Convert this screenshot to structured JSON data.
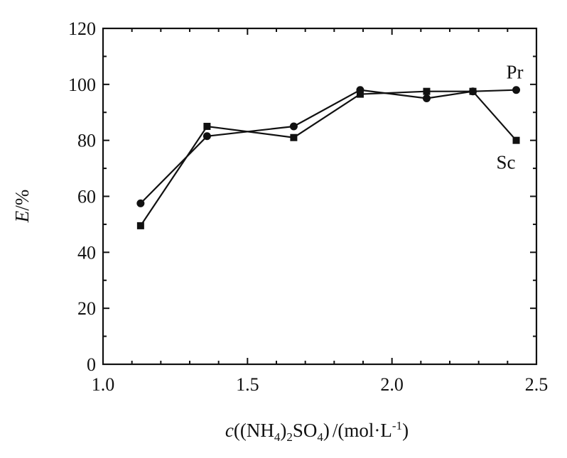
{
  "chart_data": {
    "type": "line",
    "xlabel": {
      "prefix": "c",
      "open": "((NH",
      "sub1": "4",
      "mid": ")",
      "sub2": "2",
      "so": "SO",
      "sub3": "4",
      "close": ")",
      "unit": "/(mol·L",
      "sup": "-1",
      "unit_close": ")"
    },
    "ylabel": {
      "var": "E",
      "unit": "/%"
    },
    "xlim": [
      1.0,
      2.5
    ],
    "ylim": [
      0,
      120
    ],
    "xticks": [
      "1.0",
      "1.5",
      "2.0",
      "2.5"
    ],
    "yticks": [
      "0",
      "20",
      "40",
      "60",
      "80",
      "100",
      "120"
    ],
    "grid": false,
    "series": [
      {
        "name": "Pr",
        "marker": "circle",
        "x": [
          1.13,
          1.36,
          1.66,
          1.89,
          2.12,
          2.28,
          2.43
        ],
        "y": [
          57.5,
          81.5,
          85.0,
          98.0,
          95.0,
          97.5,
          98.0
        ]
      },
      {
        "name": "Sc",
        "marker": "square",
        "x": [
          1.13,
          1.36,
          1.66,
          1.89,
          2.12,
          2.28,
          2.43
        ],
        "y": [
          49.5,
          85.0,
          81.0,
          96.5,
          97.5,
          97.5,
          80.0
        ]
      }
    ]
  }
}
